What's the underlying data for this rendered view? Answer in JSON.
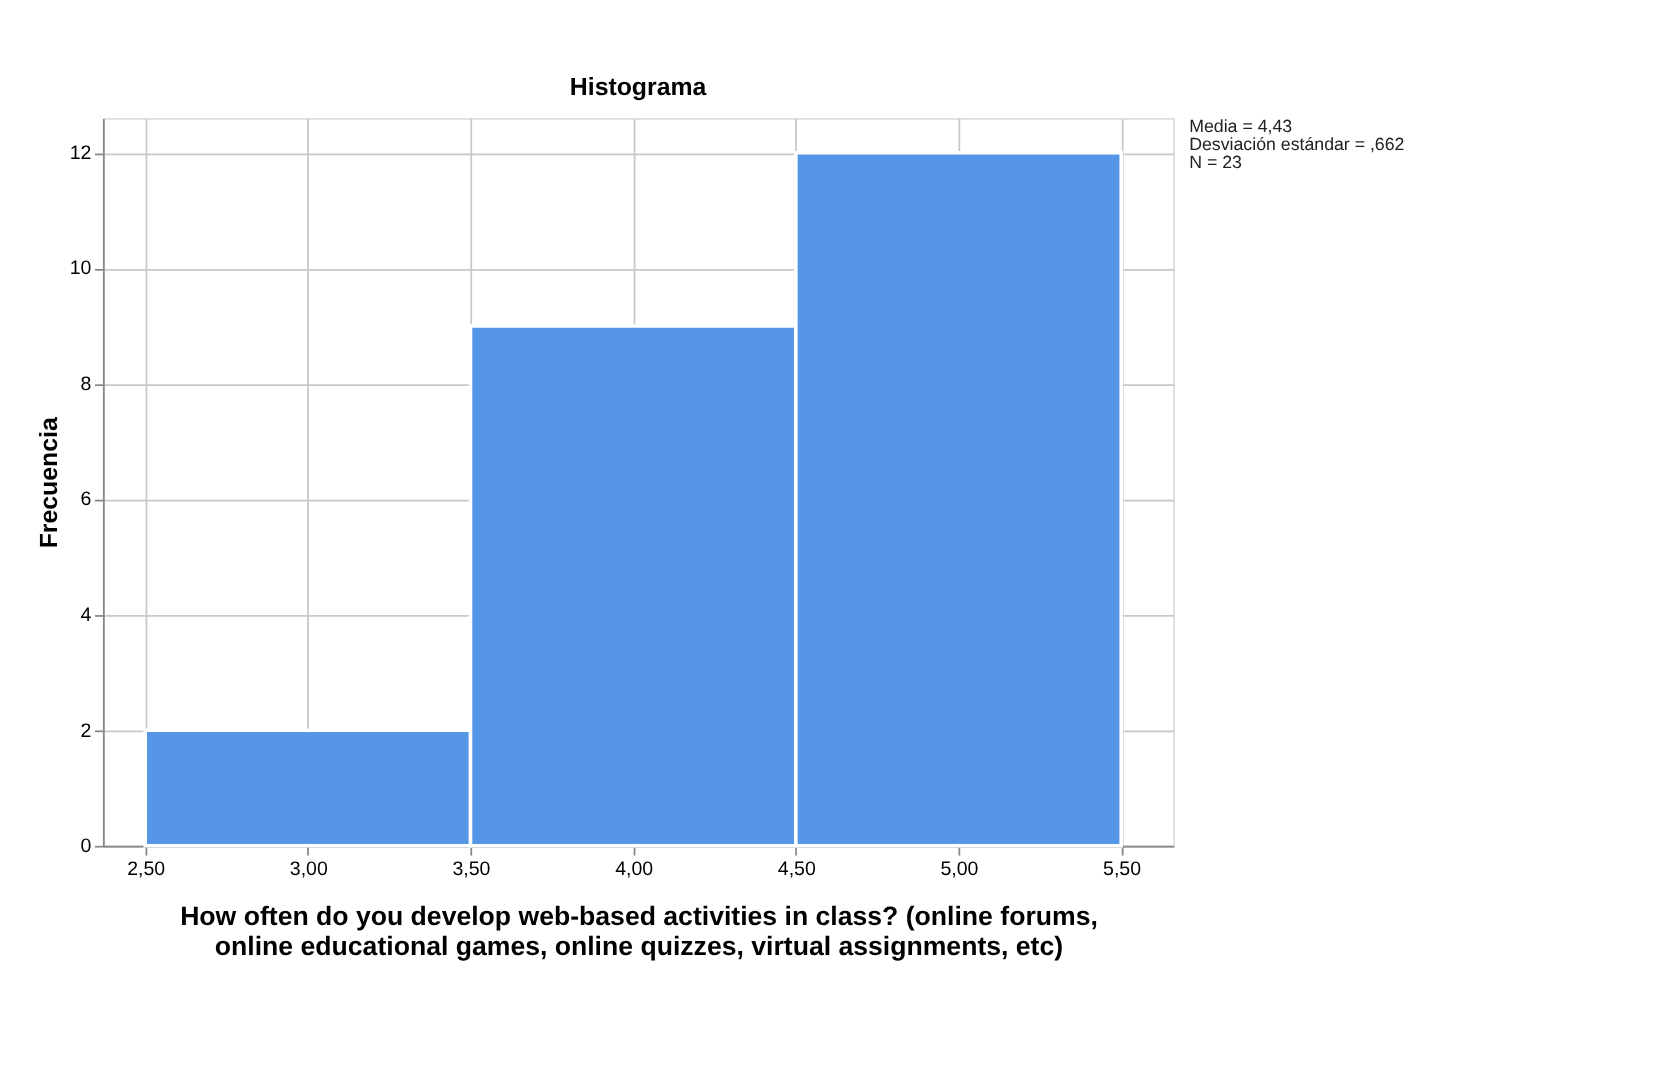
{
  "chart_data": {
    "type": "histogram",
    "title": "Histograma",
    "xlabel": "How often do you develop web-based activities in class? (online forums,\nonline educational games, online quizzes, virtual assignments, etc)",
    "ylabel": "Frecuencia",
    "bins": [
      2.5,
      3.5,
      4.5,
      5.5
    ],
    "values": [
      2,
      9,
      12
    ],
    "color": "#5596e6",
    "xlim": [
      2.37,
      5.66
    ],
    "ylim": [
      0,
      12.6
    ],
    "xticks": [
      {
        "value": 2.5,
        "label": "2,50"
      },
      {
        "value": 3.0,
        "label": "3,00"
      },
      {
        "value": 3.5,
        "label": "3,50"
      },
      {
        "value": 4.0,
        "label": "4,00"
      },
      {
        "value": 4.5,
        "label": "4,50"
      },
      {
        "value": 5.0,
        "label": "5,00"
      },
      {
        "value": 5.5,
        "label": "5,50"
      }
    ],
    "yticks": [
      0,
      2,
      4,
      6,
      8,
      10,
      12
    ],
    "grid": true,
    "annotations": [
      "Media = 4,43\nDesviación estándar = ,662\nN = 23"
    ]
  }
}
